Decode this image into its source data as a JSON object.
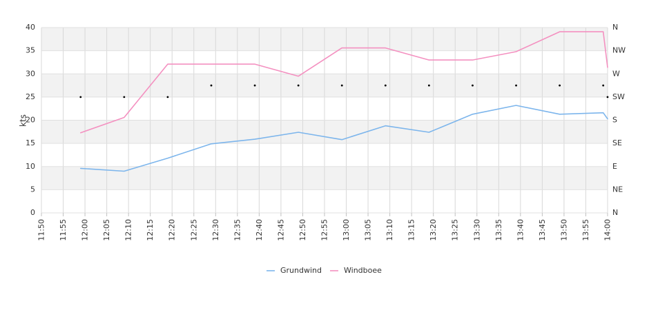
{
  "chart_data": {
    "type": "line",
    "title": "",
    "xlabel": "",
    "ylabel": "kts",
    "ylim": [
      0,
      40
    ],
    "yticks": [
      "0",
      "5",
      "10",
      "15",
      "20",
      "25",
      "30",
      "35",
      "40"
    ],
    "y2ticks": [
      "N",
      "NE",
      "E",
      "SE",
      "S",
      "SW",
      "W",
      "NW",
      "N"
    ],
    "grid": true,
    "legend_position": "bottom",
    "categories": [
      "11:50",
      "11:55",
      "12:00",
      "12:05",
      "12:10",
      "12:15",
      "12:20",
      "12:25",
      "12:30",
      "12:35",
      "12:40",
      "12:45",
      "12:50",
      "12:55",
      "13:00",
      "13:05",
      "13:10",
      "13:15",
      "13:20",
      "13:25",
      "13:30",
      "13:35",
      "13:40",
      "13:45",
      "13:50",
      "13:55",
      "14:00"
    ],
    "series": [
      {
        "name": "Grundwind",
        "color": "#7cb5ec",
        "points": [
          {
            "x": "11:59",
            "y": 9.6
          },
          {
            "x": "12:09",
            "y": 9.0
          },
          {
            "x": "12:19",
            "y": 11.8
          },
          {
            "x": "12:29",
            "y": 14.9
          },
          {
            "x": "12:39",
            "y": 15.9
          },
          {
            "x": "12:49",
            "y": 17.4
          },
          {
            "x": "12:59",
            "y": 15.8
          },
          {
            "x": "13:09",
            "y": 18.8
          },
          {
            "x": "13:19",
            "y": 17.4
          },
          {
            "x": "13:29",
            "y": 21.3
          },
          {
            "x": "13:39",
            "y": 23.2
          },
          {
            "x": "13:49",
            "y": 21.3
          },
          {
            "x": "13:59",
            "y": 21.6
          },
          {
            "x": "14:00",
            "y": 20.3
          }
        ]
      },
      {
        "name": "Windboee",
        "color": "#f490c0",
        "points": [
          {
            "x": "11:59",
            "y": 17.3
          },
          {
            "x": "12:09",
            "y": 20.6
          },
          {
            "x": "12:19",
            "y": 32.1
          },
          {
            "x": "12:29",
            "y": 32.1
          },
          {
            "x": "12:39",
            "y": 32.1
          },
          {
            "x": "12:49",
            "y": 29.5
          },
          {
            "x": "12:59",
            "y": 35.6
          },
          {
            "x": "13:09",
            "y": 35.6
          },
          {
            "x": "13:19",
            "y": 33.0
          },
          {
            "x": "13:29",
            "y": 33.0
          },
          {
            "x": "13:39",
            "y": 34.8
          },
          {
            "x": "13:49",
            "y": 39.1
          },
          {
            "x": "13:59",
            "y": 39.1
          },
          {
            "x": "14:00",
            "y": 31.4
          }
        ]
      },
      {
        "name": "",
        "type": "scatter",
        "color": "#000000",
        "axis": "direction",
        "points": [
          {
            "x": "11:59",
            "y": "SW"
          },
          {
            "x": "12:09",
            "y": "SW"
          },
          {
            "x": "12:19",
            "y": "SW"
          },
          {
            "x": "12:29",
            "y": "WSW"
          },
          {
            "x": "12:39",
            "y": "WSW"
          },
          {
            "x": "12:49",
            "y": "WSW"
          },
          {
            "x": "12:59",
            "y": "WSW"
          },
          {
            "x": "13:09",
            "y": "WSW"
          },
          {
            "x": "13:19",
            "y": "WSW"
          },
          {
            "x": "13:29",
            "y": "WSW"
          },
          {
            "x": "13:39",
            "y": "WSW"
          },
          {
            "x": "13:49",
            "y": "WSW"
          },
          {
            "x": "13:59",
            "y": "WSW"
          },
          {
            "x": "14:00",
            "y": "SW"
          }
        ]
      }
    ]
  }
}
